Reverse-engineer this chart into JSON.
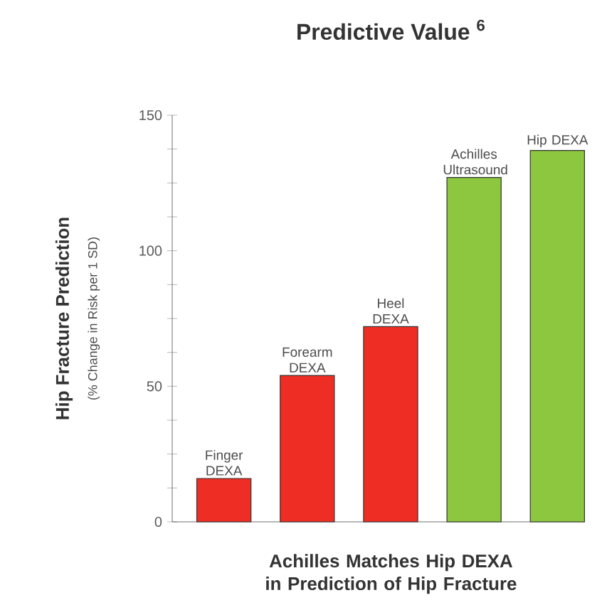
{
  "chart_data": {
    "type": "bar",
    "title": "Predictive Value $^{6}$",
    "ylabel": "Hip Fracture Prediction",
    "xlabel": "Achilles Matches Hip DEXA in Prediction of Hip Fracture",
    "annotations": [
      "(% Change in Risk per 1 SD)"
    ],
    "categories": [
      "Finger DEXA",
      "Forearm DEXA",
      "Heel DEXA",
      "Achilles Ultrasound",
      "Hip DEXA"
    ],
    "values": [
      16,
      54,
      72,
      127,
      137
    ],
    "colors": [
      "#ee2e24",
      "#ee2e24",
      "#ee2e24",
      "#8dc63f",
      "#8dc63f"
    ],
    "ylim": [
      0,
      150
    ],
    "yticks": [
      0,
      {
        "value": 12.5,
        "label": null
      },
      {
        "value": 25,
        "label": null
      },
      {
        "value": 37.5,
        "label": null
      },
      50,
      {
        "value": 62.5,
        "label": null
      },
      {
        "value": 75,
        "label": null
      },
      {
        "value": 87.5,
        "label": null
      },
      100,
      {
        "value": 112.5,
        "label": null
      },
      {
        "value": 125,
        "label": null
      },
      {
        "value": 137.5,
        "label": null
      },
      150
    ],
    "grid": false
  }
}
